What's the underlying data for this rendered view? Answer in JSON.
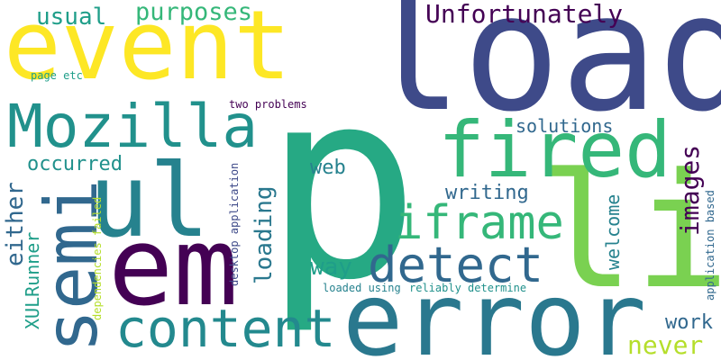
{
  "words": {
    "load": "load",
    "event": "event",
    "p": "p",
    "error": "error",
    "em": "em",
    "li": "li",
    "ul": "ul",
    "semi": "semi",
    "mozilla": "Mozilla",
    "fired": "fired",
    "content": "content",
    "iframe": "iframe",
    "detect": "detect",
    "unfortunately": "Unfortunately",
    "purposes": "purposes",
    "usual": "usual",
    "images": "images",
    "loading": "loading",
    "either": "either",
    "occurred": "occurred",
    "web": "web",
    "writing": "writing",
    "way": "way",
    "solutions": "solutions",
    "welcome": "welcome",
    "xulrunner": "XULRunner",
    "work": "work",
    "never": "never",
    "page_etc": "page etc",
    "two_problems": "two problems",
    "desktop_application": "desktop application",
    "dependencies_failed": "dependencies failed",
    "loaded_using": "loaded using",
    "reliably_determine": "reliably determine",
    "application_based": "application based"
  },
  "colors": {
    "dark_purple": "#440154",
    "purple": "#482878",
    "indigo": "#3e4a89",
    "blue": "#31688e",
    "teal_blue": "#26828e",
    "teal": "#1f9e89",
    "green_teal": "#35b779",
    "green": "#6ece58",
    "lime": "#b5de2b",
    "yellow": "#fde725"
  }
}
